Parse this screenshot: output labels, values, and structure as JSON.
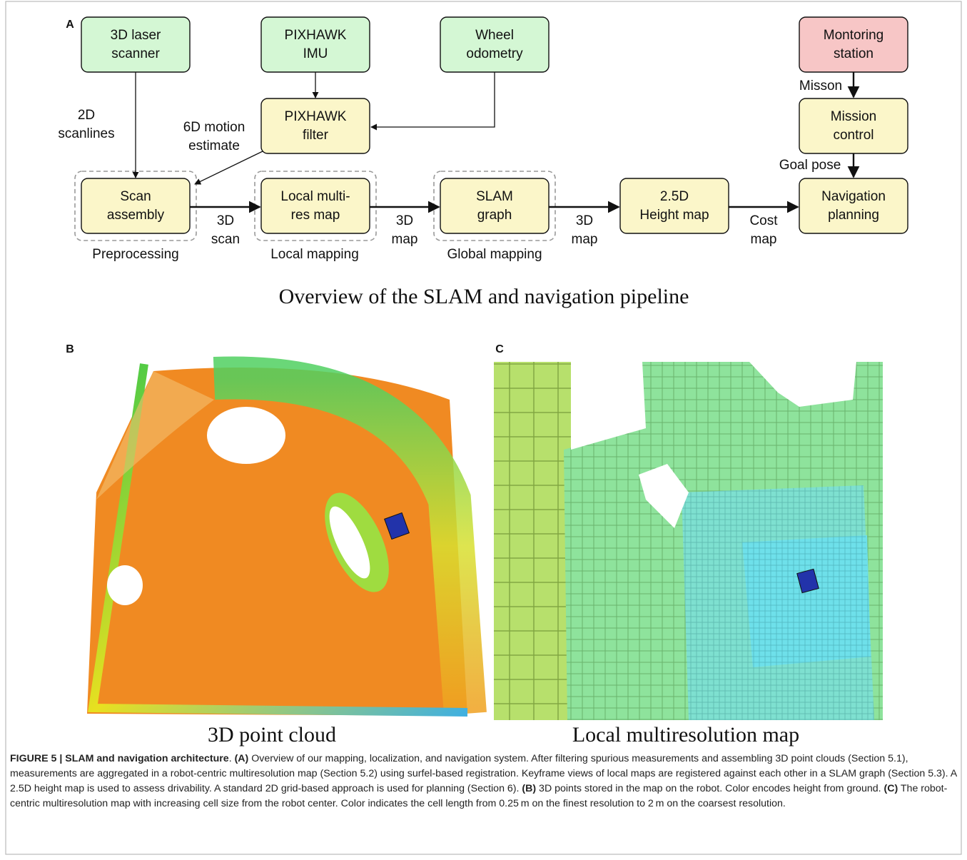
{
  "panels": {
    "a": "A",
    "b": "B",
    "c": "C"
  },
  "nodes": [
    {
      "label": [
        "3D laser",
        "scanner"
      ]
    },
    {
      "label": [
        "PIXHAWK",
        "IMU"
      ]
    },
    {
      "label": [
        "Wheel",
        "odometry"
      ]
    },
    {
      "label": [
        "Montoring",
        "station"
      ]
    },
    {
      "label": [
        "PIXHAWK",
        "filter"
      ]
    },
    {
      "label": [
        "Mission",
        "control"
      ]
    },
    {
      "label": [
        "Scan",
        "assembly"
      ]
    },
    {
      "label": [
        "Local multi-",
        "res map"
      ]
    },
    {
      "label": [
        "SLAM",
        "graph"
      ]
    },
    {
      "label": [
        "2.5D",
        "Height map"
      ]
    },
    {
      "label": [
        "Navigation",
        "planning"
      ]
    }
  ],
  "edge_labels": [
    [
      "2D",
      "scanlines"
    ],
    [
      "6D motion",
      "estimate"
    ],
    [
      "3D",
      "scan"
    ],
    [
      "3D",
      "map"
    ],
    [
      "3D",
      "map"
    ],
    [
      "Cost",
      "map"
    ],
    [
      "Misson"
    ],
    [
      "Goal pose"
    ]
  ],
  "groups": [
    "Preprocessing",
    "Local mapping",
    "Global mapping"
  ],
  "diagram_title": "Overview of the SLAM and navigation pipeline",
  "image_captions": [
    "3D point cloud",
    "Local multiresolution map"
  ],
  "caption": [
    {
      "text": "FIGURE 5 | SLAM and navigation architecture",
      "bold": true
    },
    {
      "text": ". ",
      "bold": false
    },
    {
      "text": "(A)",
      "bold": true
    },
    {
      "text": " Overview of our mapping, localization, and navigation system. After filtering spurious measurements and assembling 3D point clouds (Section 5.1), measurements are aggregated in a robot-centric multiresolution map (Section 5.2) using surfel-based registration. Keyframe views of local maps are registered against each other in a SLAM graph (Section 5.3). A 2.5D height map is used to assess drivability. A standard 2D grid-based approach is used for planning (Section 6). ",
      "bold": false
    },
    {
      "text": "(B)",
      "bold": true
    },
    {
      "text": " 3D points stored in the map on the robot. Color encodes height from ground. ",
      "bold": false
    },
    {
      "text": "(C)",
      "bold": true
    },
    {
      "text": " The robot-centric multiresolution map with increasing cell size from the robot center. Color indicates the cell length from 0.25 m on the finest resolution to 2 m on the coarsest resolution.",
      "bold": false
    }
  ]
}
